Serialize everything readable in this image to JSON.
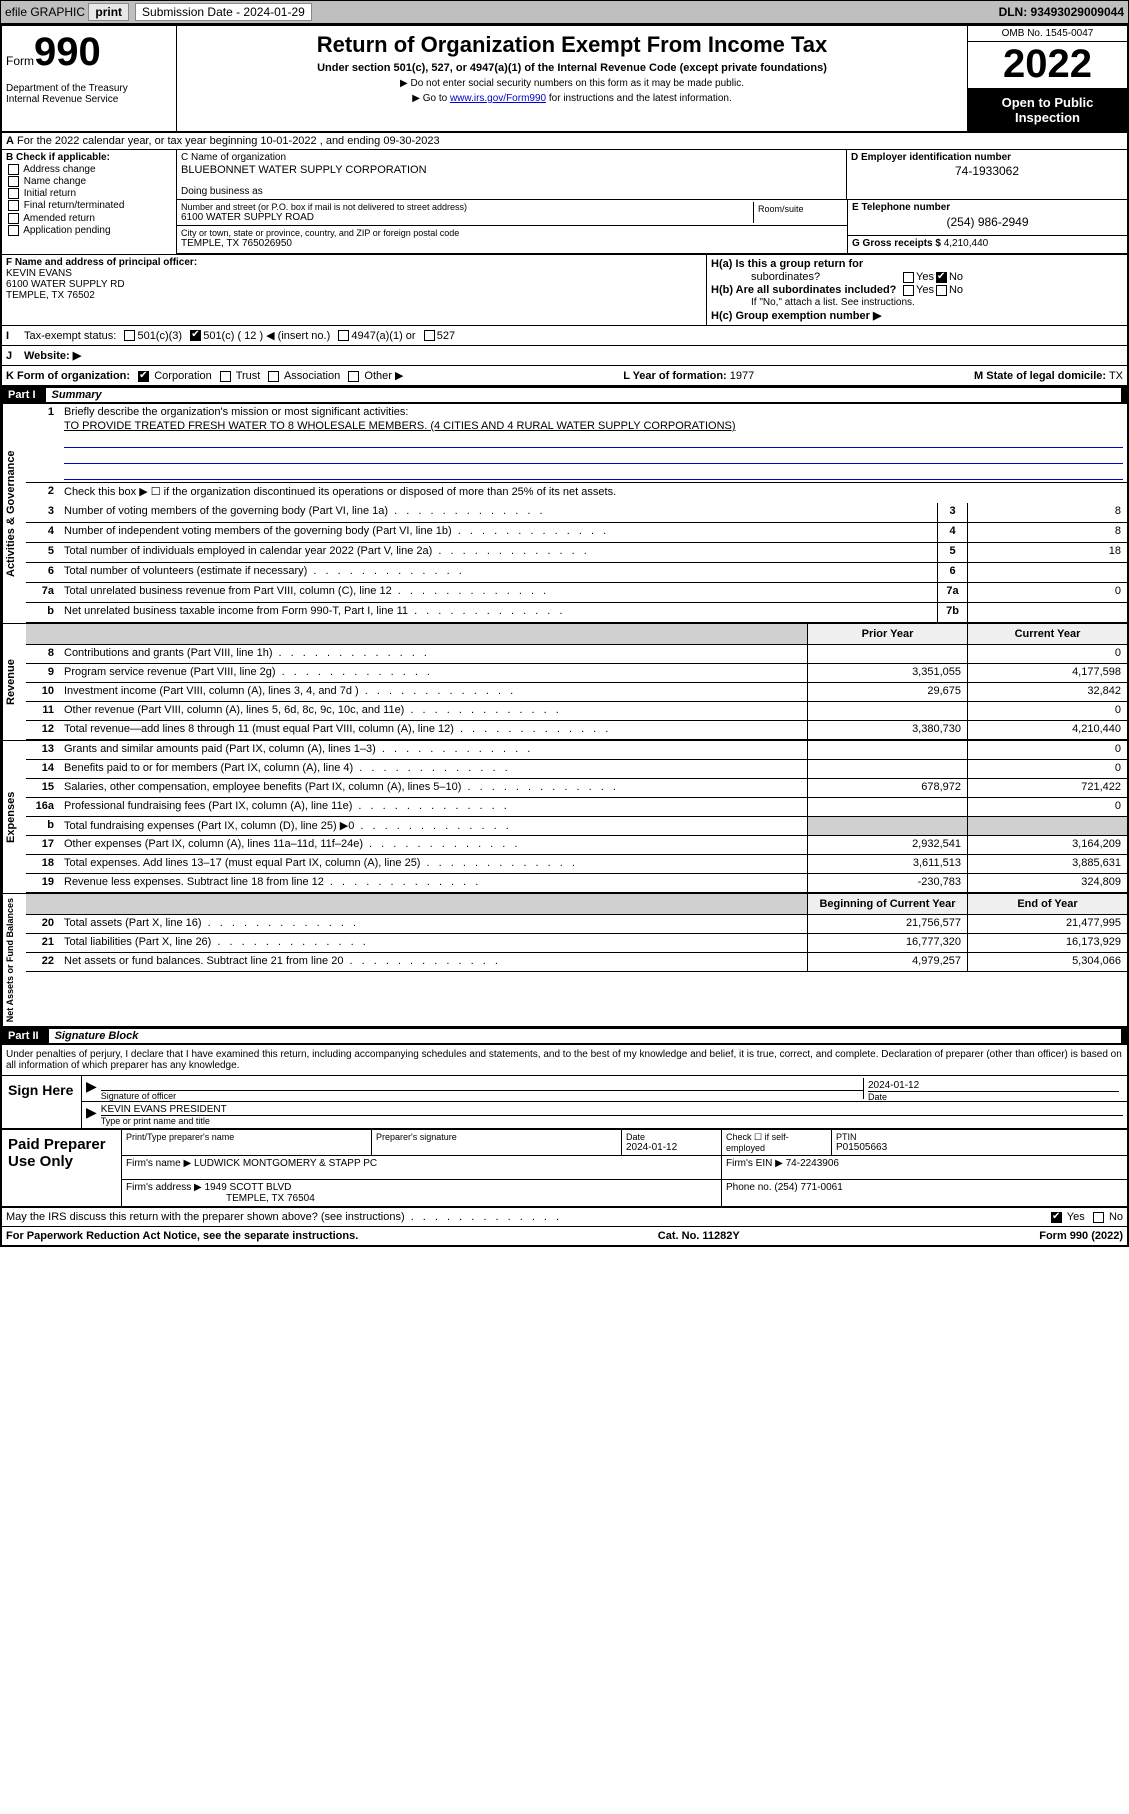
{
  "top_bar": {
    "efile": "efile GRAPHIC",
    "print": "print",
    "sub_label": "Submission Date - 2024-01-29",
    "dln": "DLN: 93493029009044"
  },
  "header": {
    "form_prefix": "Form",
    "form_no": "990",
    "dept": "Department of the Treasury\nInternal Revenue Service",
    "title": "Return of Organization Exempt From Income Tax",
    "subtitle": "Under section 501(c), 527, or 4947(a)(1) of the Internal Revenue Code (except private foundations)",
    "note1": "▶ Do not enter social security numbers on this form as it may be made public.",
    "note2_pre": "▶ Go to ",
    "note2_link": "www.irs.gov/Form990",
    "note2_post": " for instructions and the latest information.",
    "omb": "OMB No. 1545-0047",
    "year": "2022",
    "open": "Open to Public Inspection"
  },
  "row_a": "For the 2022 calendar year, or tax year beginning 10-01-2022   , and ending 09-30-2023",
  "section_b": {
    "label": "B Check if applicable:",
    "items": [
      "Address change",
      "Name change",
      "Initial return",
      "Final return/terminated",
      "Amended return",
      "Application pending"
    ]
  },
  "section_c": {
    "name_lbl": "C Name of organization",
    "name": "BLUEBONNET WATER SUPPLY CORPORATION",
    "dba_lbl": "Doing business as",
    "street_lbl": "Number and street (or P.O. box if mail is not delivered to street address)",
    "street": "6100 WATER SUPPLY ROAD",
    "room_lbl": "Room/suite",
    "city_lbl": "City or town, state or province, country, and ZIP or foreign postal code",
    "city": "TEMPLE, TX  765026950"
  },
  "section_d": {
    "lbl": "D Employer identification number",
    "val": "74-1933062"
  },
  "section_e": {
    "lbl": "E Telephone number",
    "val": "(254) 986-2949"
  },
  "section_g": {
    "lbl": "G Gross receipts $",
    "val": "4,210,440"
  },
  "section_f": {
    "lbl": "F Name and address of principal officer:",
    "name": "KEVIN EVANS",
    "addr1": "6100 WATER SUPPLY RD",
    "addr2": "TEMPLE, TX  76502"
  },
  "section_h": {
    "a_lbl": "H(a)  Is this a group return for",
    "a_sub": "subordinates?",
    "b_lbl": "H(b)  Are all subordinates included?",
    "b_note": "If \"No,\" attach a list. See instructions.",
    "c_lbl": "H(c)  Group exemption number ▶",
    "yes": "Yes",
    "no": "No"
  },
  "row_i": {
    "lbl": "Tax-exempt status:",
    "opts": [
      "501(c)(3)",
      "501(c) ( 12 ) ◀ (insert no.)",
      "4947(a)(1) or",
      "527"
    ],
    "checked_idx": 1
  },
  "row_j": {
    "lbl": "Website: ▶"
  },
  "row_k": {
    "lbl": "K Form of organization:",
    "opts": [
      "Corporation",
      "Trust",
      "Association",
      "Other ▶"
    ],
    "checked_idx": 0,
    "l_lbl": "L Year of formation:",
    "l_val": "1977",
    "m_lbl": "M State of legal domicile:",
    "m_val": "TX"
  },
  "part1": {
    "num": "Part I",
    "title": "Summary"
  },
  "mission": {
    "q1": "Briefly describe the organization's mission or most significant activities:",
    "text": "TO PROVIDE TREATED FRESH WATER TO 8 WHOLESALE MEMBERS. (4 CITIES AND 4 RURAL WATER SUPPLY CORPORATIONS)",
    "q2": "Check this box ▶ ☐  if the organization discontinued its operations or disposed of more than 25% of its net assets."
  },
  "gov_rows": [
    {
      "n": "3",
      "t": "Number of voting members of the governing body (Part VI, line 1a)",
      "box": "3",
      "v": "8"
    },
    {
      "n": "4",
      "t": "Number of independent voting members of the governing body (Part VI, line 1b)",
      "box": "4",
      "v": "8"
    },
    {
      "n": "5",
      "t": "Total number of individuals employed in calendar year 2022 (Part V, line 2a)",
      "box": "5",
      "v": "18"
    },
    {
      "n": "6",
      "t": "Total number of volunteers (estimate if necessary)",
      "box": "6",
      "v": ""
    },
    {
      "n": "7a",
      "t": "Total unrelated business revenue from Part VIII, column (C), line 12",
      "box": "7a",
      "v": "0"
    },
    {
      "n": "b",
      "t": "Net unrelated business taxable income from Form 990-T, Part I, line 11",
      "box": "7b",
      "v": ""
    }
  ],
  "col_heads": {
    "prior": "Prior Year",
    "current": "Current Year"
  },
  "revenue_rows": [
    {
      "n": "8",
      "t": "Contributions and grants (Part VIII, line 1h)",
      "p": "",
      "c": "0"
    },
    {
      "n": "9",
      "t": "Program service revenue (Part VIII, line 2g)",
      "p": "3,351,055",
      "c": "4,177,598"
    },
    {
      "n": "10",
      "t": "Investment income (Part VIII, column (A), lines 3, 4, and 7d )",
      "p": "29,675",
      "c": "32,842"
    },
    {
      "n": "11",
      "t": "Other revenue (Part VIII, column (A), lines 5, 6d, 8c, 9c, 10c, and 11e)",
      "p": "",
      "c": "0"
    },
    {
      "n": "12",
      "t": "Total revenue—add lines 8 through 11 (must equal Part VIII, column (A), line 12)",
      "p": "3,380,730",
      "c": "4,210,440"
    }
  ],
  "expense_rows": [
    {
      "n": "13",
      "t": "Grants and similar amounts paid (Part IX, column (A), lines 1–3)",
      "p": "",
      "c": "0"
    },
    {
      "n": "14",
      "t": "Benefits paid to or for members (Part IX, column (A), line 4)",
      "p": "",
      "c": "0"
    },
    {
      "n": "15",
      "t": "Salaries, other compensation, employee benefits (Part IX, column (A), lines 5–10)",
      "p": "678,972",
      "c": "721,422"
    },
    {
      "n": "16a",
      "t": "Professional fundraising fees (Part IX, column (A), line 11e)",
      "p": "",
      "c": "0"
    },
    {
      "n": "b",
      "t": "Total fundraising expenses (Part IX, column (D), line 25) ▶0",
      "p": "shade",
      "c": "shade"
    },
    {
      "n": "17",
      "t": "Other expenses (Part IX, column (A), lines 11a–11d, 11f–24e)",
      "p": "2,932,541",
      "c": "3,164,209"
    },
    {
      "n": "18",
      "t": "Total expenses. Add lines 13–17 (must equal Part IX, column (A), line 25)",
      "p": "3,611,513",
      "c": "3,885,631"
    },
    {
      "n": "19",
      "t": "Revenue less expenses. Subtract line 18 from line 12",
      "p": "-230,783",
      "c": "324,809"
    }
  ],
  "asset_heads": {
    "beg": "Beginning of Current Year",
    "end": "End of Year"
  },
  "asset_rows": [
    {
      "n": "20",
      "t": "Total assets (Part X, line 16)",
      "p": "21,756,577",
      "c": "21,477,995"
    },
    {
      "n": "21",
      "t": "Total liabilities (Part X, line 26)",
      "p": "16,777,320",
      "c": "16,173,929"
    },
    {
      "n": "22",
      "t": "Net assets or fund balances. Subtract line 21 from line 20",
      "p": "4,979,257",
      "c": "5,304,066"
    }
  ],
  "sides": {
    "gov": "Activities & Governance",
    "rev": "Revenue",
    "exp": "Expenses",
    "net": "Net Assets or Fund Balances"
  },
  "part2": {
    "num": "Part II",
    "title": "Signature Block"
  },
  "sig_intro": "Under penalties of perjury, I declare that I have examined this return, including accompanying schedules and statements, and to the best of my knowledge and belief, it is true, correct, and complete. Declaration of preparer (other than officer) is based on all information of which preparer has any knowledge.",
  "sign_here": "Sign Here",
  "sig": {
    "sig_lbl": "Signature of officer",
    "date": "2024-01-12",
    "date_lbl": "Date",
    "name": "KEVIN EVANS PRESIDENT",
    "name_lbl": "Type or print name and title"
  },
  "paid": {
    "label": "Paid Preparer Use Only",
    "r1": {
      "c1_lbl": "Print/Type preparer's name",
      "c2_lbl": "Preparer's signature",
      "c3_lbl": "Date",
      "c3": "2024-01-12",
      "c4_lbl": "Check ☐ if self-employed",
      "c5_lbl": "PTIN",
      "c5": "P01505663"
    },
    "r2": {
      "lbl": "Firm's name    ▶",
      "val": "LUDWICK MONTGOMERY & STAPP PC",
      "ein_lbl": "Firm's EIN ▶",
      "ein": "74-2243906"
    },
    "r3": {
      "lbl": "Firm's address ▶",
      "val1": "1949 SCOTT BLVD",
      "val2": "TEMPLE, TX  76504",
      "ph_lbl": "Phone no.",
      "ph": "(254) 771-0061"
    }
  },
  "discuss": {
    "txt": "May the IRS discuss this return with the preparer shown above? (see instructions)",
    "yes": "Yes",
    "no": "No"
  },
  "footer": {
    "left": "For Paperwork Reduction Act Notice, see the separate instructions.",
    "mid": "Cat. No. 11282Y",
    "right": "Form 990 (2022)"
  },
  "colors": {
    "link": "#0000cc",
    "part_bg": "#000000",
    "shade": "#d0d0d0"
  }
}
